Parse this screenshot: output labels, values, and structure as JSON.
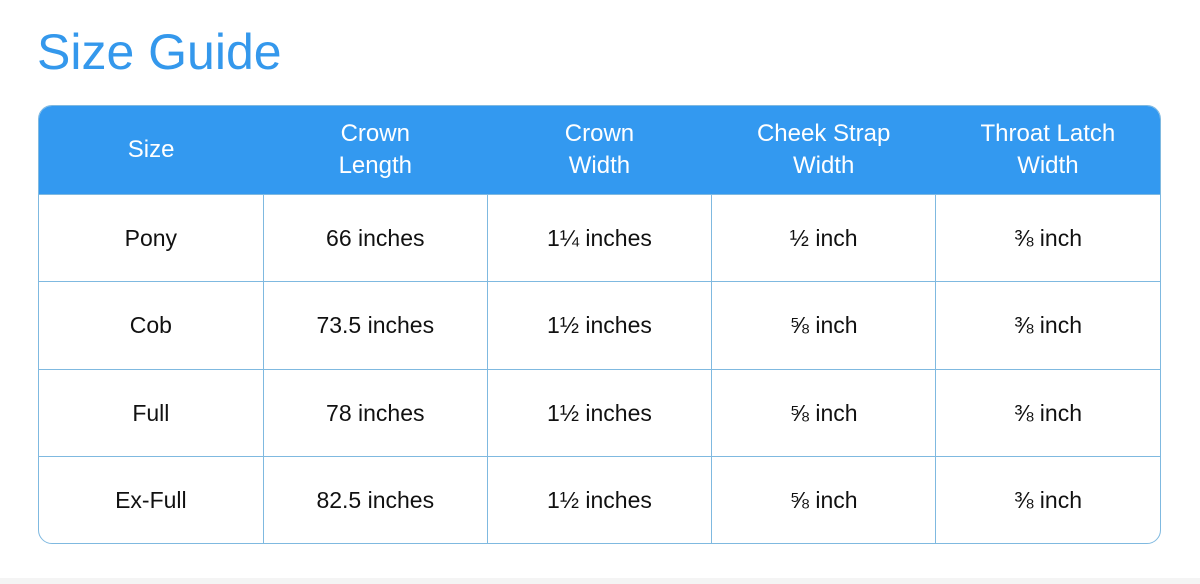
{
  "title": "Size Guide",
  "colors": {
    "accent": "#3399f0",
    "border": "#7fb9e0"
  },
  "headers": [
    [
      "Size"
    ],
    [
      "Crown",
      "Length"
    ],
    [
      "Crown",
      "Width"
    ],
    [
      "Cheek Strap",
      "Width"
    ],
    [
      "Throat Latch",
      "Width"
    ]
  ],
  "rows": [
    [
      "Pony",
      "66 inches",
      "1¼ inches",
      "½ inch",
      "⅜ inch"
    ],
    [
      "Cob",
      "73.5 inches",
      "1½ inches",
      "⅝ inch",
      "⅜ inch"
    ],
    [
      "Full",
      "78 inches",
      "1½ inches",
      "⅝ inch",
      "⅜ inch"
    ],
    [
      "Ex-Full",
      "82.5 inches",
      "1½ inches",
      "⅝ inch",
      "⅜ inch"
    ]
  ]
}
